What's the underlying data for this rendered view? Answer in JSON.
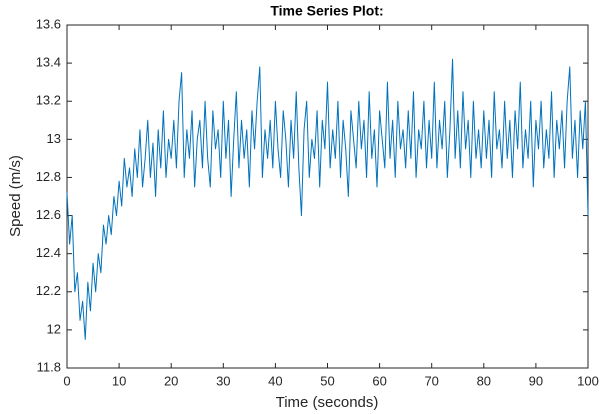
{
  "chart_data": {
    "type": "line",
    "title": "Time Series Plot:",
    "x_label": "Time (seconds)",
    "y_label": "Speed (m/s)",
    "color": "#0072bd",
    "x": [
      0,
      0.5,
      1,
      1.5,
      2,
      2.5,
      3,
      3.5,
      4,
      4.5,
      5,
      5.5,
      6,
      6.5,
      7,
      7.5,
      8,
      8.5,
      9,
      9.5,
      10,
      10.5,
      11,
      11.5,
      12,
      12.5,
      13,
      13.5,
      14,
      14.5,
      15,
      15.5,
      16,
      16.5,
      17,
      17.5,
      18,
      18.5,
      19,
      19.5,
      20,
      20.5,
      21,
      21.5,
      22,
      22.5,
      23,
      23.5,
      24,
      24.5,
      25,
      25.5,
      26,
      26.5,
      27,
      27.5,
      28,
      28.5,
      29,
      29.5,
      30,
      30.5,
      31,
      31.5,
      32,
      32.5,
      33,
      33.5,
      34,
      34.5,
      35,
      35.5,
      36,
      36.5,
      37,
      37.5,
      38,
      38.5,
      39,
      39.5,
      40,
      40.5,
      41,
      41.5,
      42,
      42.5,
      43,
      43.5,
      44,
      44.5,
      45,
      45.5,
      46,
      46.5,
      47,
      47.5,
      48,
      48.5,
      49,
      49.5,
      50,
      50.5,
      51,
      51.5,
      52,
      52.5,
      53,
      53.5,
      54,
      54.5,
      55,
      55.5,
      56,
      56.5,
      57,
      57.5,
      58,
      58.5,
      59,
      59.5,
      60,
      60.5,
      61,
      61.5,
      62,
      62.5,
      63,
      63.5,
      64,
      64.5,
      65,
      65.5,
      66,
      66.5,
      67,
      67.5,
      68,
      68.5,
      69,
      69.5,
      70,
      70.5,
      71,
      71.5,
      72,
      72.5,
      73,
      73.5,
      74,
      74.5,
      75,
      75.5,
      76,
      76.5,
      77,
      77.5,
      78,
      78.5,
      79,
      79.5,
      80,
      80.5,
      81,
      81.5,
      82,
      82.5,
      83,
      83.5,
      84,
      84.5,
      85,
      85.5,
      86,
      86.5,
      87,
      87.5,
      88,
      88.5,
      89,
      89.5,
      90,
      90.5,
      91,
      91.5,
      92,
      92.5,
      93,
      93.5,
      94,
      94.5,
      95,
      95.5,
      96,
      96.5,
      97,
      97.5,
      98,
      98.5,
      99,
      99.5,
      100
    ],
    "values": [
      12.72,
      12.45,
      12.6,
      12.2,
      12.3,
      12.05,
      12.15,
      11.95,
      12.25,
      12.1,
      12.35,
      12.2,
      12.4,
      12.3,
      12.55,
      12.45,
      12.6,
      12.5,
      12.7,
      12.6,
      12.78,
      12.65,
      12.9,
      12.75,
      12.85,
      12.7,
      12.95,
      12.8,
      13.05,
      12.75,
      12.9,
      13.1,
      12.8,
      12.98,
      12.7,
      13.05,
      12.85,
      13.15,
      12.8,
      13.0,
      12.9,
      13.1,
      12.85,
      13.2,
      13.35,
      12.8,
      13.05,
      12.9,
      13.15,
      12.75,
      13.0,
      13.1,
      12.85,
      13.2,
      12.9,
      12.75,
      13.15,
      12.95,
      13.05,
      12.8,
      13.2,
      12.9,
      13.1,
      12.7,
      13.0,
      13.25,
      12.85,
      13.1,
      12.9,
      13.05,
      12.75,
      13.15,
      12.95,
      13.2,
      13.38,
      12.8,
      13.05,
      12.9,
      13.1,
      12.85,
      13.2,
      12.95,
      12.8,
      13.15,
      13.0,
      12.75,
      13.1,
      12.9,
      13.25,
      12.85,
      12.6,
      13.05,
      13.2,
      12.8,
      13.0,
      12.9,
      13.15,
      12.75,
      13.1,
      12.95,
      13.3,
      12.85,
      13.05,
      12.9,
      13.2,
      12.8,
      13.1,
      12.95,
      12.7,
      13.15,
      13.0,
      12.85,
      13.2,
      12.95,
      13.1,
      12.8,
      13.25,
      12.9,
      13.05,
      12.75,
      13.15,
      13.0,
      12.85,
      13.3,
      12.9,
      13.1,
      12.8,
      13.2,
      12.95,
      13.05,
      12.85,
      13.15,
      12.9,
      13.25,
      12.8,
      13.05,
      12.95,
      13.2,
      12.85,
      13.1,
      12.9,
      13.3,
      12.85,
      13.1,
      12.95,
      13.2,
      12.8,
      13.05,
      13.42,
      12.9,
      13.15,
      12.85,
      13.25,
      12.95,
      13.1,
      12.8,
      13.2,
      12.9,
      13.05,
      12.85,
      13.15,
      12.9,
      13.1,
      12.8,
      13.25,
      12.95,
      13.05,
      12.85,
      13.2,
      12.9,
      13.1,
      12.8,
      13.15,
      12.95,
      13.3,
      12.85,
      13.05,
      12.9,
      13.2,
      12.75,
      13.1,
      12.95,
      13.2,
      12.85,
      13.05,
      12.9,
      13.25,
      12.8,
      13.1,
      12.95,
      13.15,
      12.85,
      13.2,
      13.38,
      12.9,
      13.1,
      12.8,
      13.15,
      12.95,
      13.2,
      12.6
    ],
    "xlim": [
      0,
      100
    ],
    "xticks": [
      0,
      10,
      20,
      30,
      40,
      50,
      60,
      70,
      80,
      90,
      100
    ],
    "ylim": [
      11.8,
      13.6
    ],
    "yticks": [
      11.8,
      12,
      12.2,
      12.4,
      12.6,
      12.8,
      13,
      13.2,
      13.4,
      13.6
    ],
    "grid": false
  }
}
